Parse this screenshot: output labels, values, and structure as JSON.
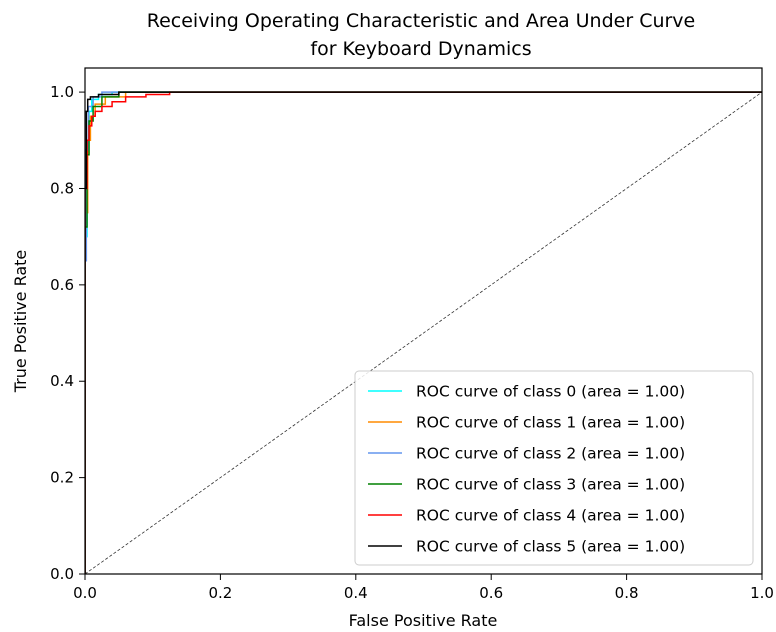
{
  "chart_data": {
    "type": "line",
    "title": [
      "Receiving Operating Characteristic and Area Under Curve",
      "for Keyboard Dynamics"
    ],
    "xlabel": "False Positive Rate",
    "ylabel": "True Positive Rate",
    "xlim": [
      0.0,
      1.0
    ],
    "ylim": [
      0.0,
      1.05
    ],
    "x_ticks": [
      "0.0",
      "0.2",
      "0.4",
      "0.6",
      "0.8",
      "1.0"
    ],
    "y_ticks": [
      "0.0",
      "0.2",
      "0.4",
      "0.6",
      "0.8",
      "1.0"
    ],
    "grid": false,
    "legend_position": "lower-right",
    "diagonal": {
      "x": [
        0,
        1
      ],
      "y": [
        0,
        1
      ],
      "style": "dashed",
      "color": "#333333"
    },
    "series": [
      {
        "name": "ROC curve of class 0 (area = 1.00)",
        "color": "#00ffff",
        "x": [
          0,
          0,
          0.003,
          0.003,
          0.006,
          0.006,
          0.01,
          0.01,
          0.02,
          0.02,
          0.04,
          0.04,
          1.0
        ],
        "y": [
          0,
          0.7,
          0.7,
          0.9,
          0.9,
          0.96,
          0.96,
          0.985,
          0.985,
          0.995,
          0.995,
          1.0,
          1.0
        ]
      },
      {
        "name": "ROC curve of class 1 (area = 1.00)",
        "color": "#ff8c00",
        "x": [
          0,
          0,
          0.004,
          0.004,
          0.008,
          0.008,
          0.015,
          0.015,
          0.03,
          0.03,
          0.06,
          0.06,
          1.0
        ],
        "y": [
          0,
          0.75,
          0.75,
          0.9,
          0.9,
          0.95,
          0.95,
          0.975,
          0.975,
          0.99,
          0.99,
          1.0,
          1.0
        ]
      },
      {
        "name": "ROC curve of class 2 (area = 1.00)",
        "color": "#6495ed",
        "x": [
          0,
          0,
          0.002,
          0.002,
          0.005,
          0.005,
          0.012,
          0.012,
          0.025,
          0.025,
          1.0
        ],
        "y": [
          0,
          0.65,
          0.65,
          0.88,
          0.88,
          0.97,
          0.97,
          0.99,
          0.99,
          1.0,
          1.0
        ]
      },
      {
        "name": "ROC curve of class 3 (area = 1.00)",
        "color": "#008000",
        "x": [
          0,
          0,
          0.003,
          0.003,
          0.006,
          0.006,
          0.012,
          0.012,
          0.025,
          0.025,
          0.05,
          0.05,
          1.0
        ],
        "y": [
          0,
          0.72,
          0.72,
          0.87,
          0.87,
          0.94,
          0.94,
          0.97,
          0.97,
          0.99,
          0.99,
          1.0,
          1.0
        ]
      },
      {
        "name": "ROC curve of class 4 (area = 1.00)",
        "color": "#ff0000",
        "x": [
          0,
          0,
          0.003,
          0.003,
          0.006,
          0.006,
          0.01,
          0.01,
          0.015,
          0.015,
          0.025,
          0.025,
          0.04,
          0.04,
          0.06,
          0.06,
          0.09,
          0.09,
          0.125,
          0.125,
          1.0
        ],
        "y": [
          0,
          0.8,
          0.8,
          0.9,
          0.9,
          0.93,
          0.93,
          0.95,
          0.95,
          0.96,
          0.96,
          0.97,
          0.97,
          0.98,
          0.98,
          0.99,
          0.99,
          0.995,
          0.995,
          1.0,
          1.0
        ]
      },
      {
        "name": "ROC curve of class 5 (area = 1.00)",
        "color": "#000000",
        "x": [
          0,
          0,
          0.002,
          0.002,
          0.004,
          0.004,
          0.008,
          0.008,
          0.02,
          0.02,
          0.05,
          0.05,
          1.0
        ],
        "y": [
          0,
          0.8,
          0.8,
          0.96,
          0.96,
          0.985,
          0.985,
          0.99,
          0.99,
          0.995,
          0.995,
          1.0,
          1.0
        ]
      }
    ]
  }
}
